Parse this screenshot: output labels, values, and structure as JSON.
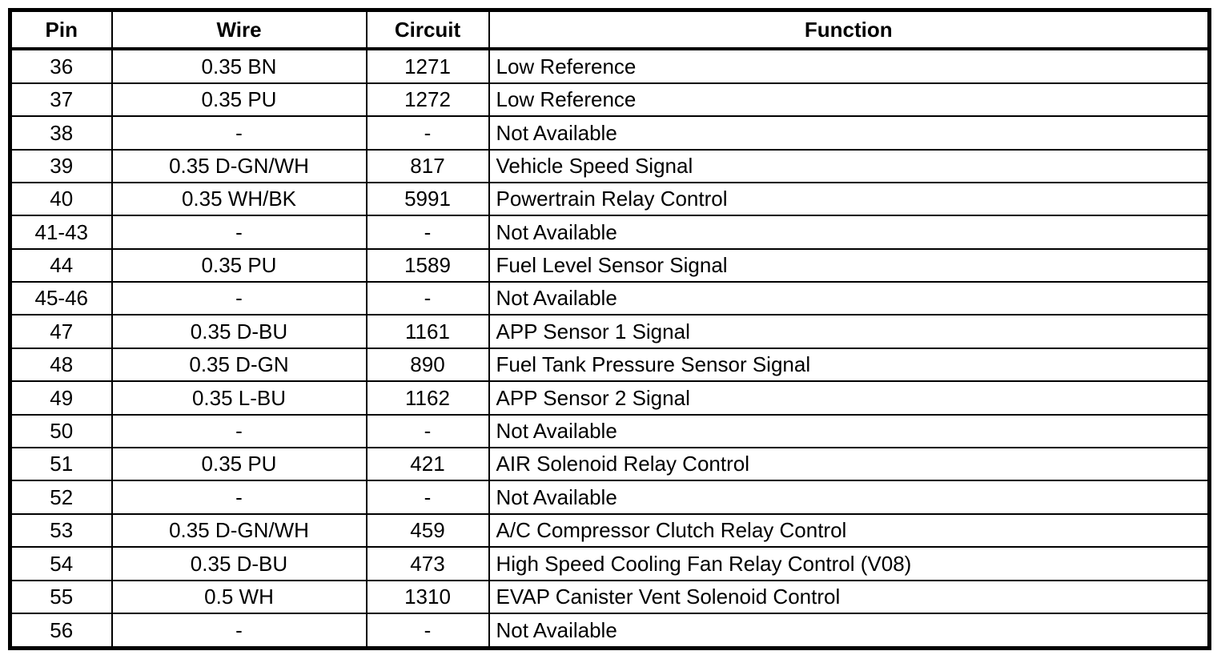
{
  "colors": {
    "background": "#ffffff",
    "border": "#000000",
    "text": "#000000"
  },
  "table": {
    "columns": [
      {
        "label": "Pin"
      },
      {
        "label": "Wire"
      },
      {
        "label": "Circuit"
      },
      {
        "label": "Function"
      }
    ],
    "rows": [
      {
        "pin": "36",
        "wire": "0.35 BN",
        "circuit": "1271",
        "function": "Low Reference"
      },
      {
        "pin": "37",
        "wire": "0.35 PU",
        "circuit": "1272",
        "function": "Low Reference"
      },
      {
        "pin": "38",
        "wire": "-",
        "circuit": "-",
        "function": "Not Available"
      },
      {
        "pin": "39",
        "wire": "0.35 D-GN/WH",
        "circuit": "817",
        "function": "Vehicle Speed Signal"
      },
      {
        "pin": "40",
        "wire": "0.35 WH/BK",
        "circuit": "5991",
        "function": "Powertrain Relay Control"
      },
      {
        "pin": "41-43",
        "wire": "-",
        "circuit": "-",
        "function": "Not Available"
      },
      {
        "pin": "44",
        "wire": "0.35 PU",
        "circuit": "1589",
        "function": "Fuel Level Sensor Signal"
      },
      {
        "pin": "45-46",
        "wire": "-",
        "circuit": "-",
        "function": "Not Available"
      },
      {
        "pin": "47",
        "wire": "0.35 D-BU",
        "circuit": "1161",
        "function": "APP Sensor 1 Signal"
      },
      {
        "pin": "48",
        "wire": "0.35 D-GN",
        "circuit": "890",
        "function": "Fuel Tank Pressure Sensor Signal"
      },
      {
        "pin": "49",
        "wire": "0.35 L-BU",
        "circuit": "1162",
        "function": "APP Sensor 2 Signal"
      },
      {
        "pin": "50",
        "wire": "-",
        "circuit": "-",
        "function": "Not Available"
      },
      {
        "pin": "51",
        "wire": "0.35 PU",
        "circuit": "421",
        "function": "AIR Solenoid Relay Control"
      },
      {
        "pin": "52",
        "wire": "-",
        "circuit": "-",
        "function": "Not Available"
      },
      {
        "pin": "53",
        "wire": "0.35 D-GN/WH",
        "circuit": "459",
        "function": "A/C Compressor Clutch Relay Control"
      },
      {
        "pin": "54",
        "wire": "0.35 D-BU",
        "circuit": "473",
        "function": "High Speed Cooling Fan Relay Control (V08)"
      },
      {
        "pin": "55",
        "wire": "0.5 WH",
        "circuit": "1310",
        "function": "EVAP Canister Vent Solenoid Control"
      },
      {
        "pin": "56",
        "wire": "-",
        "circuit": "-",
        "function": "Not Available"
      }
    ]
  }
}
